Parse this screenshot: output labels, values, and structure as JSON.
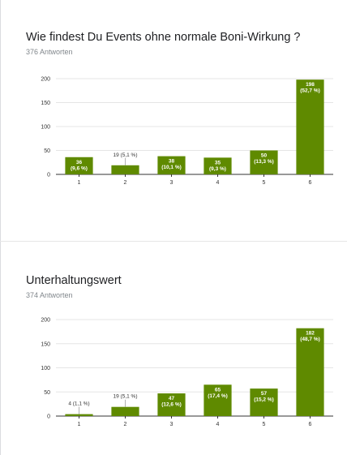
{
  "colors": {
    "bar": "#5f8a00",
    "grid": "#e5e5e5",
    "axis": "#333333"
  },
  "chart_data": [
    {
      "type": "bar",
      "title": "Wie findest Du Events ohne normale Boni-Wirkung ?",
      "subtitle": "376 Antworten",
      "categories": [
        "1",
        "2",
        "3",
        "4",
        "5",
        "6"
      ],
      "values": [
        36,
        19,
        38,
        35,
        50,
        198
      ],
      "labels": [
        "36 (9,6 %)",
        "19 (5,1 %)",
        "38 (10,1 %)",
        "35 (9,3 %)",
        "50 (13,3 %)",
        "198 (52,7 %)"
      ],
      "yticks": [
        0,
        50,
        100,
        150,
        200
      ],
      "ylim": [
        0,
        200
      ],
      "grid": true
    },
    {
      "type": "bar",
      "title": "Unterhaltungswert",
      "subtitle": "374 Antworten",
      "categories": [
        "1",
        "2",
        "3",
        "4",
        "5",
        "6"
      ],
      "values": [
        4,
        19,
        47,
        65,
        57,
        182
      ],
      "labels": [
        "4 (1,1 %)",
        "19 (5,1 %)",
        "47 (12,6 %)",
        "65 (17,4 %)",
        "57 (15,2 %)",
        "182 (48,7 %)"
      ],
      "yticks": [
        0,
        50,
        100,
        150,
        200
      ],
      "ylim": [
        0,
        200
      ],
      "grid": true
    }
  ]
}
